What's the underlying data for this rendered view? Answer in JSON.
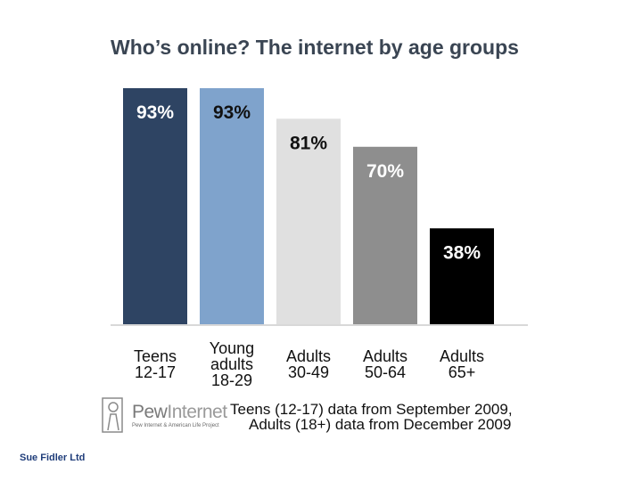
{
  "chart_data": {
    "type": "bar",
    "title": "Who’s online? The internet by age groups",
    "categories": [
      [
        "Teens",
        "12-17"
      ],
      [
        "Young",
        "adults",
        "18-29"
      ],
      [
        "Adults",
        "30-49"
      ],
      [
        "Adults",
        "50-64"
      ],
      [
        "Adults",
        "65+"
      ]
    ],
    "values": [
      93,
      93,
      81,
      70,
      38
    ],
    "value_labels": [
      "93%",
      "93%",
      "81%",
      "70%",
      "38%"
    ],
    "colors": [
      "#2e4463",
      "#7fa3cc",
      "#e0e0e0",
      "#8e8e8e",
      "#000000"
    ],
    "label_colors": [
      "#ffffff",
      "#111111",
      "#111111",
      "#ffffff",
      "#ffffff"
    ],
    "ylim": [
      0,
      93
    ],
    "grid": false,
    "xlabel": "",
    "ylabel": ""
  },
  "source": {
    "logo_name_bold": "Pew",
    "logo_name_light": "Internet",
    "logo_tagline": "Pew Internet & American Life Project",
    "note_line1": "Teens (12-17) data from September 2009,",
    "note_line2": "Adults (18+) data from December 2009"
  },
  "footer": {
    "credit": "Sue Fidler Ltd"
  }
}
